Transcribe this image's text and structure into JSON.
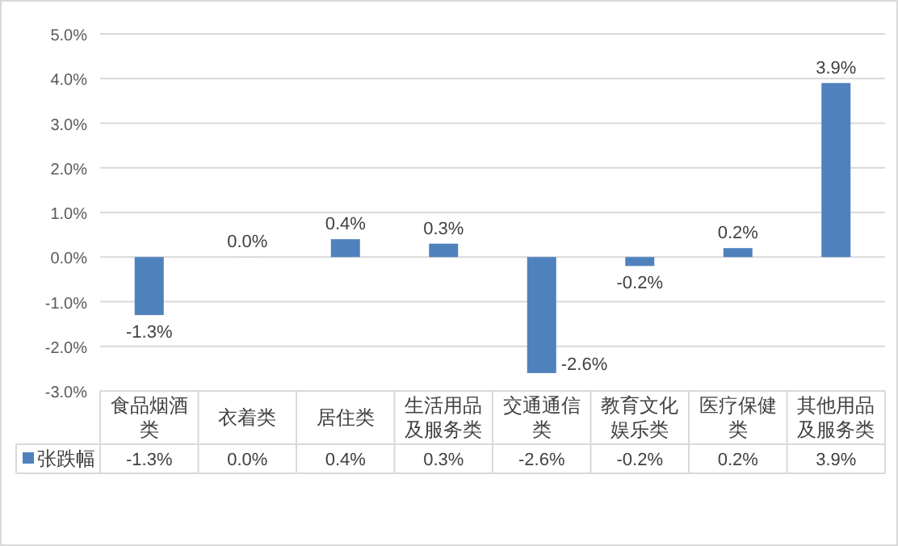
{
  "chart_data": {
    "type": "bar",
    "categories": [
      "食品烟酒类",
      "衣着类",
      "居住类",
      "生活用品及服务类",
      "交通通信类",
      "教育文化娱乐类",
      "医疗保健类",
      "其他用品及服务类"
    ],
    "series": [
      {
        "name": "张跌幅",
        "color": "#4f81bd",
        "values": [
          -1.3,
          0.0,
          0.4,
          0.3,
          -2.6,
          -0.2,
          0.2,
          3.9
        ],
        "value_labels": [
          "-1.3%",
          "0.0%",
          "0.4%",
          "0.3%",
          "-2.6%",
          "-0.2%",
          "0.2%",
          "3.9%"
        ]
      }
    ],
    "ylim": [
      -3,
      5
    ],
    "yticks": [
      {
        "value": -3,
        "label": "-3.0%"
      },
      {
        "value": -2,
        "label": "-2.0%"
      },
      {
        "value": -1,
        "label": "-1.0%"
      },
      {
        "value": 0,
        "label": "0.0%"
      },
      {
        "value": 1,
        "label": "1.0%"
      },
      {
        "value": 2,
        "label": "2.0%"
      },
      {
        "value": 3,
        "label": "3.0%"
      },
      {
        "value": 4,
        "label": "4.0%"
      },
      {
        "value": 5,
        "label": "5.0%"
      }
    ],
    "grid": "y",
    "legend": "bottom"
  }
}
